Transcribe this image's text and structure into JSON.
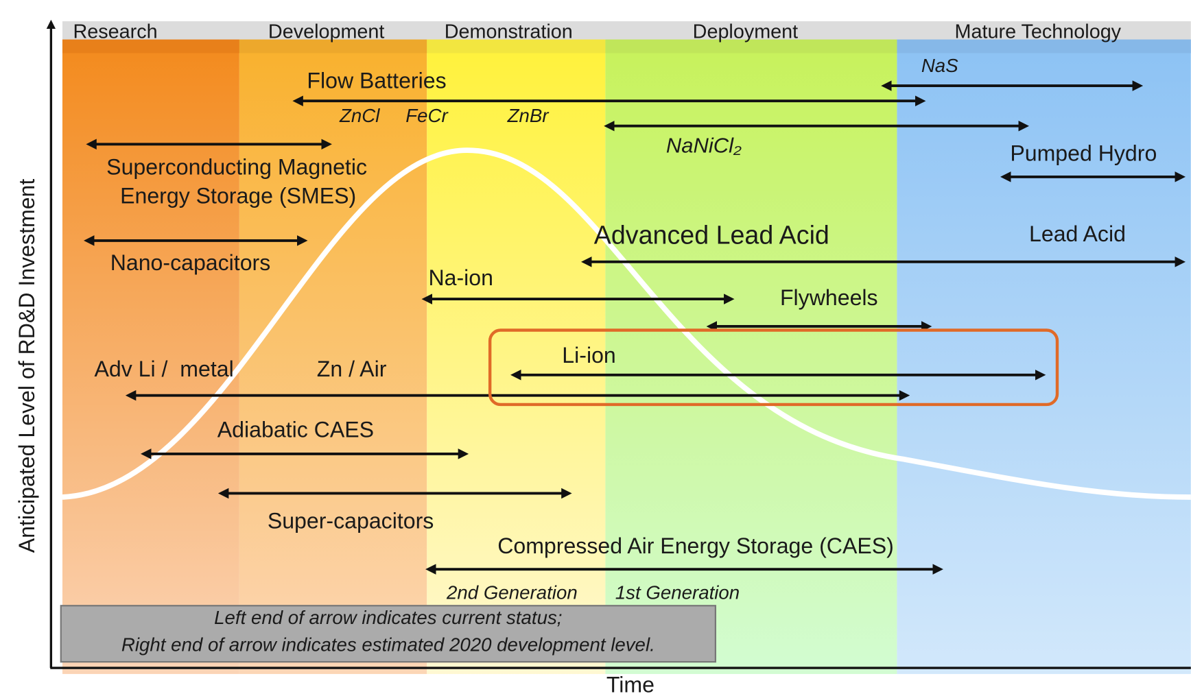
{
  "axes": {
    "y_label": "Anticipated Level of RD&D Investment",
    "x_label": "Time"
  },
  "phases": [
    "Research",
    "Development",
    "Demonstration",
    "Deployment",
    "Mature Technology"
  ],
  "technologies": {
    "flow_batteries": "Flow Batteries",
    "zncl": "ZnCl",
    "fecr": "FeCr",
    "znbr": "ZnBr",
    "nas": "NaS",
    "nanicl": "NaNiCl₂",
    "smes": [
      "Superconducting Magnetic",
      "Energy Storage (SMES)"
    ],
    "pumped_hydro": "Pumped Hydro",
    "nano_capacitors": "Nano-capacitors",
    "advanced_lead_acid": "Advanced Lead Acid",
    "lead_acid": "Lead Acid",
    "na_ion": "Na-ion",
    "flywheels": "Flywheels",
    "li_ion": "Li-ion",
    "adv_li_metal": "Adv Li /  metal",
    "zn_air": "Zn / Air",
    "adiabatic_caes": "Adiabatic CAES",
    "super_capacitors": "Super-capacitors",
    "caes": "Compressed Air Energy Storage (CAES)",
    "second_generation": "2nd Generation",
    "first_generation": "1st Generation"
  },
  "note": [
    "Left end of arrow indicates current status;",
    "Right end of arrow indicates estimated 2020 development level."
  ]
}
